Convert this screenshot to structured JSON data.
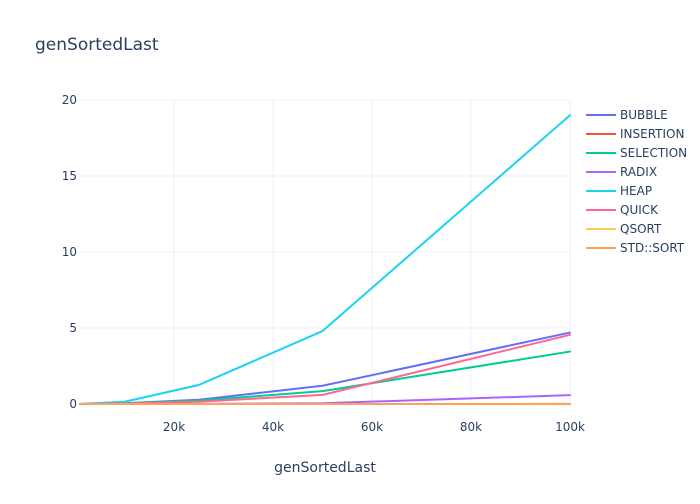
{
  "chart_data": {
    "type": "line",
    "title": "genSortedLast",
    "xlabel": "genSortedLast",
    "ylabel": "",
    "x": [
      1000,
      10000,
      25000,
      50000,
      100000
    ],
    "xlim": [
      1000,
      100000
    ],
    "ylim": [
      0,
      20
    ],
    "x_ticks": [
      20000,
      40000,
      60000,
      80000,
      100000
    ],
    "x_tick_labels": [
      "20k",
      "40k",
      "60k",
      "80k",
      "100k"
    ],
    "y_ticks": [
      0,
      5,
      10,
      15,
      20
    ],
    "y_tick_labels": [
      "0",
      "5",
      "10",
      "15",
      "20"
    ],
    "grid": true,
    "legend_position": "right",
    "series": [
      {
        "name": "BUBBLE",
        "color": "#636efa",
        "values": [
          0.002,
          0.05,
          0.28,
          1.2,
          4.7
        ]
      },
      {
        "name": "INSERTION",
        "color": "#ef553b",
        "values": [
          0.0,
          0.0,
          0.0,
          0.0,
          0.0
        ]
      },
      {
        "name": "SELECTION",
        "color": "#00cc96",
        "values": [
          0.002,
          0.04,
          0.22,
          0.85,
          3.45
        ]
      },
      {
        "name": "RADIX",
        "color": "#ab63fa",
        "values": [
          0.0,
          0.002,
          0.01,
          0.05,
          0.58
        ]
      },
      {
        "name": "HEAP",
        "color": "#19d3f3",
        "values": [
          0.005,
          0.15,
          1.25,
          4.8,
          19.0
        ]
      },
      {
        "name": "QUICK",
        "color": "#ff6692",
        "values": [
          0.002,
          0.03,
          0.15,
          0.6,
          4.55
        ]
      },
      {
        "name": "QSORT",
        "color": "#fecb52",
        "values": [
          0.0,
          0.0,
          0.0,
          0.0,
          0.005
        ]
      },
      {
        "name": "STD::SORT",
        "color": "#ffa15a",
        "values": [
          0.0,
          0.0,
          0.0,
          0.0,
          0.005
        ]
      }
    ]
  }
}
